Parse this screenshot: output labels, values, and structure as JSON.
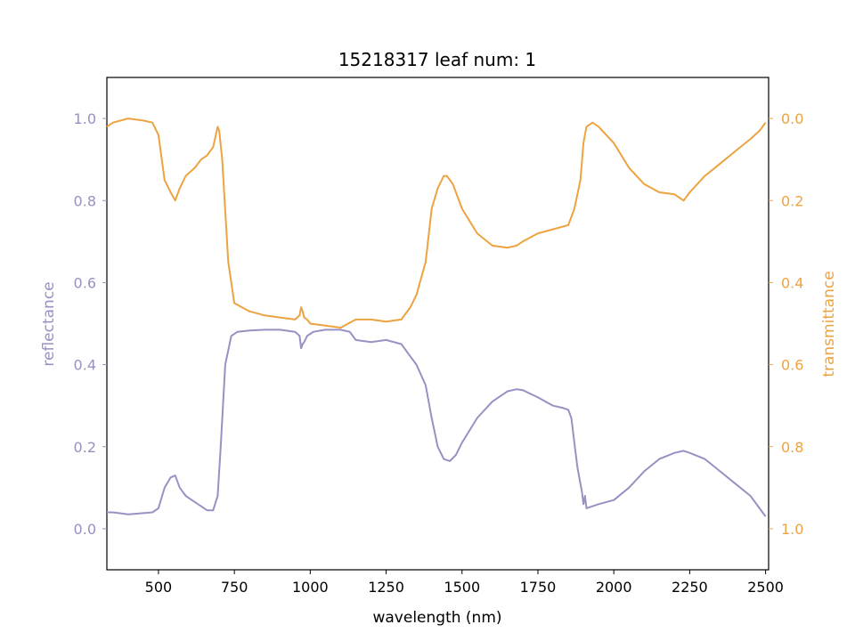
{
  "chart_data": {
    "type": "line",
    "title": "15218317 leaf num: 1",
    "xlabel": "wavelength (nm)",
    "ylabel_left": "reflectance",
    "ylabel_right": "transmittance",
    "xlim": [
      330,
      2510
    ],
    "ylim_left": [
      -0.1,
      1.1
    ],
    "ylim_right": [
      1.1,
      -0.1
    ],
    "right_axis_inverted": true,
    "grid": false,
    "x_ticks": [
      500,
      750,
      1000,
      1250,
      1500,
      1750,
      2000,
      2250,
      2500
    ],
    "y_ticks_left": [
      0.0,
      0.2,
      0.4,
      0.6,
      0.8,
      1.0
    ],
    "y_ticks_right": [
      0.0,
      0.2,
      0.4,
      0.6,
      0.8,
      1.0
    ],
    "colors": {
      "reflectance": "#9990c4",
      "transmittance": "#eda340"
    },
    "series": [
      {
        "axis": "left",
        "x": [
          330,
          350,
          400,
          450,
          480,
          500,
          520,
          540,
          555,
          570,
          590,
          610,
          640,
          660,
          680,
          695,
          705,
          720,
          740,
          760,
          800,
          850,
          900,
          950,
          965,
          970,
          975,
          980,
          990,
          1000,
          1010,
          1050,
          1100,
          1130,
          1150,
          1200,
          1250,
          1300,
          1320,
          1350,
          1380,
          1400,
          1420,
          1440,
          1460,
          1480,
          1500,
          1550,
          1600,
          1650,
          1680,
          1700,
          1750,
          1800,
          1830,
          1850,
          1860,
          1880,
          1895,
          1900,
          1905,
          1910,
          1950,
          2000,
          2050,
          2100,
          2150,
          2200,
          2230,
          2250,
          2300,
          2350,
          2400,
          2450,
          2480,
          2500
        ],
        "y": [
          0.04,
          0.04,
          0.035,
          0.038,
          0.04,
          0.05,
          0.1,
          0.125,
          0.13,
          0.1,
          0.08,
          0.07,
          0.055,
          0.045,
          0.045,
          0.08,
          0.2,
          0.4,
          0.47,
          0.48,
          0.483,
          0.485,
          0.485,
          0.48,
          0.47,
          0.44,
          0.45,
          0.455,
          0.47,
          0.475,
          0.48,
          0.485,
          0.485,
          0.48,
          0.46,
          0.455,
          0.46,
          0.45,
          0.43,
          0.4,
          0.35,
          0.27,
          0.2,
          0.17,
          0.165,
          0.18,
          0.21,
          0.27,
          0.31,
          0.335,
          0.34,
          0.338,
          0.32,
          0.3,
          0.295,
          0.29,
          0.27,
          0.15,
          0.09,
          0.06,
          0.08,
          0.05,
          0.06,
          0.07,
          0.1,
          0.14,
          0.17,
          0.185,
          0.19,
          0.185,
          0.17,
          0.14,
          0.11,
          0.08,
          0.05,
          0.03
        ]
      },
      {
        "axis": "right",
        "x": [
          330,
          350,
          400,
          450,
          480,
          500,
          520,
          540,
          555,
          570,
          590,
          620,
          640,
          660,
          680,
          695,
          700,
          710,
          730,
          750,
          800,
          850,
          900,
          950,
          965,
          970,
          975,
          980,
          990,
          1000,
          1050,
          1100,
          1150,
          1200,
          1250,
          1300,
          1330,
          1350,
          1380,
          1400,
          1420,
          1440,
          1450,
          1470,
          1500,
          1550,
          1600,
          1650,
          1680,
          1700,
          1750,
          1800,
          1850,
          1870,
          1890,
          1900,
          1910,
          1930,
          1950,
          2000,
          2050,
          2100,
          2150,
          2200,
          2230,
          2250,
          2300,
          2350,
          2400,
          2450,
          2480,
          2500
        ],
        "y": [
          0.02,
          0.01,
          0.0,
          0.005,
          0.01,
          0.04,
          0.15,
          0.18,
          0.2,
          0.17,
          0.14,
          0.12,
          0.1,
          0.09,
          0.07,
          0.02,
          0.03,
          0.1,
          0.35,
          0.45,
          0.47,
          0.48,
          0.485,
          0.49,
          0.48,
          0.46,
          0.47,
          0.485,
          0.49,
          0.5,
          0.505,
          0.51,
          0.49,
          0.49,
          0.495,
          0.49,
          0.46,
          0.43,
          0.35,
          0.22,
          0.17,
          0.14,
          0.14,
          0.16,
          0.22,
          0.28,
          0.31,
          0.315,
          0.31,
          0.3,
          0.28,
          0.27,
          0.26,
          0.22,
          0.15,
          0.06,
          0.02,
          0.01,
          0.02,
          0.06,
          0.12,
          0.16,
          0.18,
          0.185,
          0.2,
          0.18,
          0.14,
          0.11,
          0.08,
          0.05,
          0.03,
          0.01
        ]
      }
    ]
  }
}
